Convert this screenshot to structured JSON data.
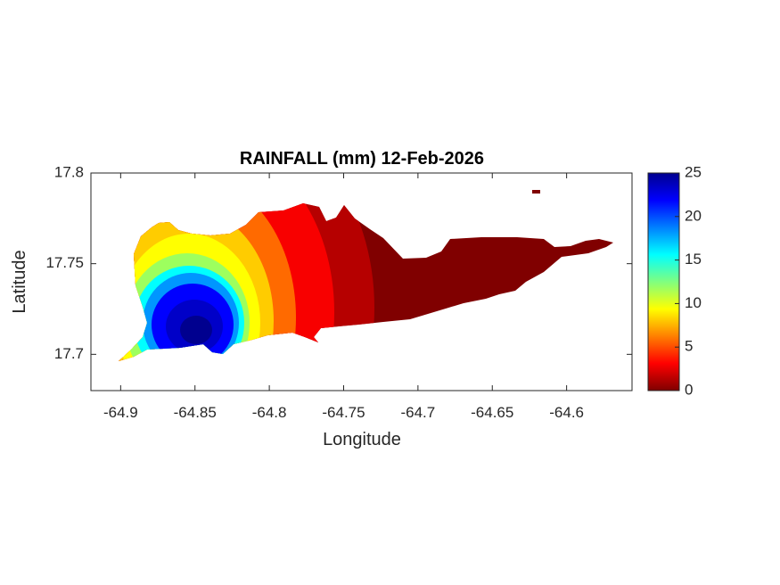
{
  "chart_data": {
    "type": "heatmap",
    "title": "RAINFALL (mm) 12-Feb-2026",
    "xlabel": "Longitude",
    "ylabel": "Latitude",
    "xlim": [
      -64.92,
      -64.556
    ],
    "ylim": [
      17.68,
      17.8
    ],
    "x_ticks": [
      -64.9,
      -64.85,
      -64.8,
      -64.75,
      -64.7,
      -64.65,
      -64.6
    ],
    "x_tick_labels": [
      "-64.9",
      "-64.85",
      "-64.8",
      "-64.75",
      "-64.7",
      "-64.65",
      "-64.6"
    ],
    "y_ticks": [
      17.7,
      17.75,
      17.8
    ],
    "y_tick_labels": [
      "17.7",
      "17.75",
      "17.8"
    ],
    "colorbar": {
      "colormap": "jet",
      "range": [
        0,
        25
      ],
      "ticks": [
        0,
        5,
        10,
        15,
        20,
        25
      ],
      "tick_labels": [
        "0",
        "5",
        "10",
        "15",
        "20",
        "25"
      ]
    },
    "rain_maximum": {
      "lon": -64.85,
      "lat": 17.7,
      "value": 25
    },
    "grid": false,
    "box": true
  }
}
